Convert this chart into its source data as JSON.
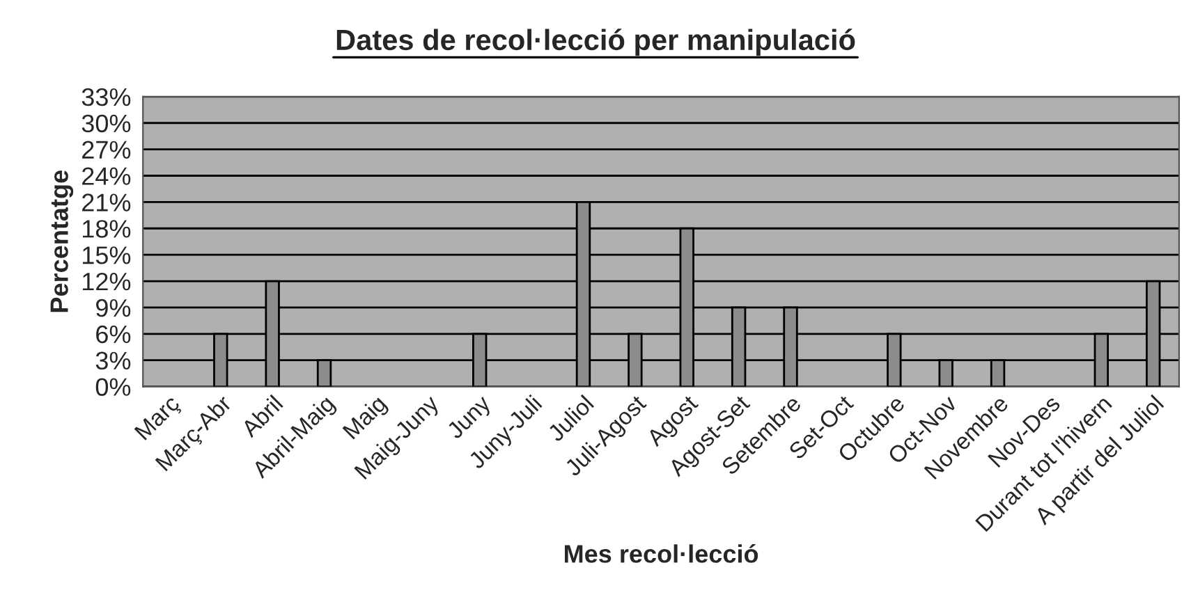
{
  "chart_data": {
    "type": "bar",
    "title": "Dates de recol·lecció per manipulació",
    "xlabel": "Mes recol·lecció",
    "ylabel": "Percentatge",
    "categories": [
      "Març",
      "Març-Abr",
      "Abril",
      "Abril-Maig",
      "Maig",
      "Maig-Juny",
      "Juny",
      "Juny-Juli",
      "Juliol",
      "Juli-Agost",
      "Agost",
      "Agost-Set",
      "Setembre",
      "Set-Oct",
      "Octubre",
      "Oct-Nov",
      "Novembre",
      "Nov-Des",
      "Durant tot l'hivern",
      "A partir del Juliol"
    ],
    "values": [
      0,
      6,
      12,
      3,
      0,
      0,
      6,
      0,
      21,
      6,
      18,
      9,
      9,
      0,
      6,
      3,
      3,
      0,
      6,
      12
    ],
    "color": "#8c8c8c",
    "ylim": [
      0,
      33
    ],
    "yticks": [
      {
        "value": 0,
        "label": "0%"
      },
      {
        "value": 3,
        "label": "3%"
      },
      {
        "value": 6,
        "label": "6%"
      },
      {
        "value": 9,
        "label": "9%"
      },
      {
        "value": 12,
        "label": "12%"
      },
      {
        "value": 15,
        "label": "15%"
      },
      {
        "value": 18,
        "label": "18%"
      },
      {
        "value": 21,
        "label": "21%"
      },
      {
        "value": 24,
        "label": "24%"
      },
      {
        "value": 27,
        "label": "27%"
      },
      {
        "value": 30,
        "label": "30%"
      },
      {
        "value": 33,
        "label": "33%"
      }
    ],
    "grid": "y"
  }
}
